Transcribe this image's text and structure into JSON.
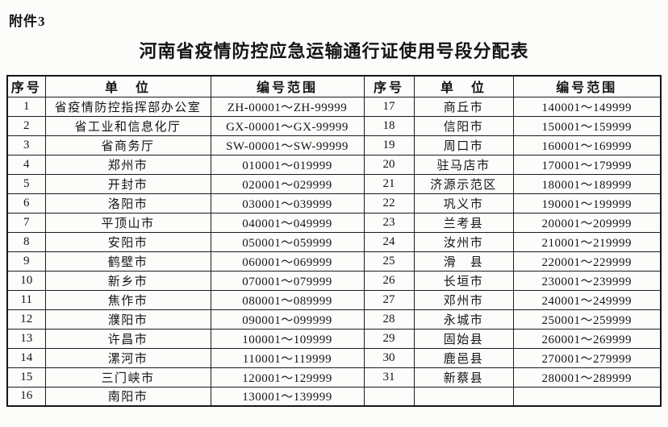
{
  "colors": {
    "background": "#fcfcfa",
    "ink": "#141414",
    "border": "#1c1c1c"
  },
  "attachment_label": "附件3",
  "title": "河南省疫情防控应急运输通行证使用号段分配表",
  "table": {
    "headers": [
      "序号",
      "单　位",
      "编号范围",
      "序号",
      "单　位",
      "编号范围"
    ],
    "left_rows": [
      {
        "no": "1",
        "unit": "省疫情防控指挥部办公室",
        "range": "ZH-00001～ZH-99999"
      },
      {
        "no": "2",
        "unit": "省工业和信息化厅",
        "range": "GX-00001～GX-99999"
      },
      {
        "no": "3",
        "unit": "省商务厅",
        "range": "SW-00001～SW-99999"
      },
      {
        "no": "4",
        "unit": "郑州市",
        "range": "010001～019999"
      },
      {
        "no": "5",
        "unit": "开封市",
        "range": "020001～029999"
      },
      {
        "no": "6",
        "unit": "洛阳市",
        "range": "030001～039999"
      },
      {
        "no": "7",
        "unit": "平顶山市",
        "range": "040001～049999"
      },
      {
        "no": "8",
        "unit": "安阳市",
        "range": "050001～059999"
      },
      {
        "no": "9",
        "unit": "鹤壁市",
        "range": "060001～069999"
      },
      {
        "no": "10",
        "unit": "新乡市",
        "range": "070001～079999"
      },
      {
        "no": "11",
        "unit": "焦作市",
        "range": "080001～089999"
      },
      {
        "no": "12",
        "unit": "濮阳市",
        "range": "090001～099999"
      },
      {
        "no": "13",
        "unit": "许昌市",
        "range": "100001～109999"
      },
      {
        "no": "14",
        "unit": "漯河市",
        "range": "110001～119999"
      },
      {
        "no": "15",
        "unit": "三门峡市",
        "range": "120001～129999"
      },
      {
        "no": "16",
        "unit": "南阳市",
        "range": "130001～139999"
      }
    ],
    "right_rows": [
      {
        "no": "17",
        "unit": "商丘市",
        "range": "140001～149999"
      },
      {
        "no": "18",
        "unit": "信阳市",
        "range": "150001～159999"
      },
      {
        "no": "19",
        "unit": "周口市",
        "range": "160001～169999"
      },
      {
        "no": "20",
        "unit": "驻马店市",
        "range": "170001～179999"
      },
      {
        "no": "21",
        "unit": "济源示范区",
        "range": "180001～189999"
      },
      {
        "no": "22",
        "unit": "巩义市",
        "range": "190001～199999"
      },
      {
        "no": "23",
        "unit": "兰考县",
        "range": "200001～209999"
      },
      {
        "no": "24",
        "unit": "汝州市",
        "range": "210001～219999"
      },
      {
        "no": "25",
        "unit": "滑　县",
        "range": "220001～229999"
      },
      {
        "no": "26",
        "unit": "长垣市",
        "range": "230001～239999"
      },
      {
        "no": "27",
        "unit": "邓州市",
        "range": "240001～249999"
      },
      {
        "no": "28",
        "unit": "永城市",
        "range": "250001～259999"
      },
      {
        "no": "29",
        "unit": "固始县",
        "range": "260001～269999"
      },
      {
        "no": "30",
        "unit": "鹿邑县",
        "range": "270001～279999"
      },
      {
        "no": "31",
        "unit": "新蔡县",
        "range": "280001～289999"
      },
      {
        "no": "",
        "unit": "",
        "range": ""
      }
    ]
  }
}
